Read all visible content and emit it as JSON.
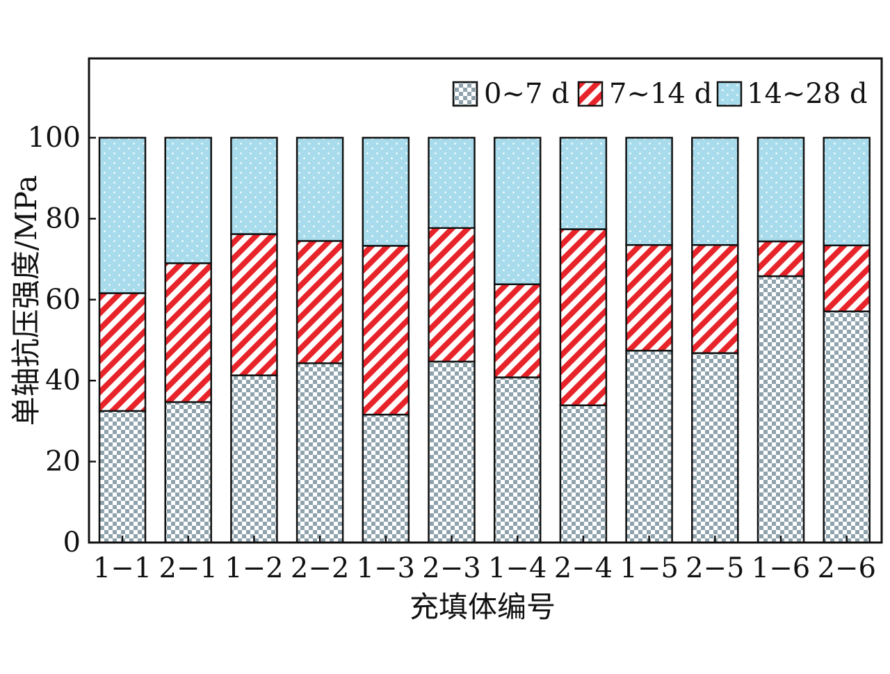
{
  "chart_data": {
    "type": "bar",
    "stacked": true,
    "title": "",
    "xlabel": "充填体编号",
    "ylabel": "单轴抗压强度/MPa",
    "ylim": [
      0,
      120
    ],
    "yticks": [
      0,
      20,
      40,
      60,
      80,
      100
    ],
    "grid": false,
    "legend_position": "top-right",
    "categories": [
      "1−1",
      "2−1",
      "1−2",
      "2−2",
      "1−3",
      "2−3",
      "1−4",
      "2−4",
      "1−5",
      "2−5",
      "1−6",
      "2−6"
    ],
    "series": [
      {
        "name": "0~7 d",
        "pattern": "checker",
        "color": "#8fa3ad",
        "values": [
          32.5,
          34.7,
          41.3,
          44.3,
          31.6,
          44.7,
          40.8,
          33.9,
          47.4,
          46.8,
          65.8,
          57.1
        ]
      },
      {
        "name": "7~14 d",
        "pattern": "hatch",
        "color": "#e8242b",
        "values": [
          29.1,
          34.3,
          34.9,
          30.2,
          41.7,
          33.0,
          23.0,
          43.5,
          26.1,
          26.7,
          8.6,
          16.3
        ]
      },
      {
        "name": "14~28 d",
        "pattern": "dots",
        "color": "#a8dcec",
        "values": [
          38.4,
          31.0,
          23.8,
          25.5,
          26.7,
          22.3,
          36.2,
          22.6,
          26.5,
          26.5,
          25.6,
          26.6
        ]
      }
    ]
  }
}
